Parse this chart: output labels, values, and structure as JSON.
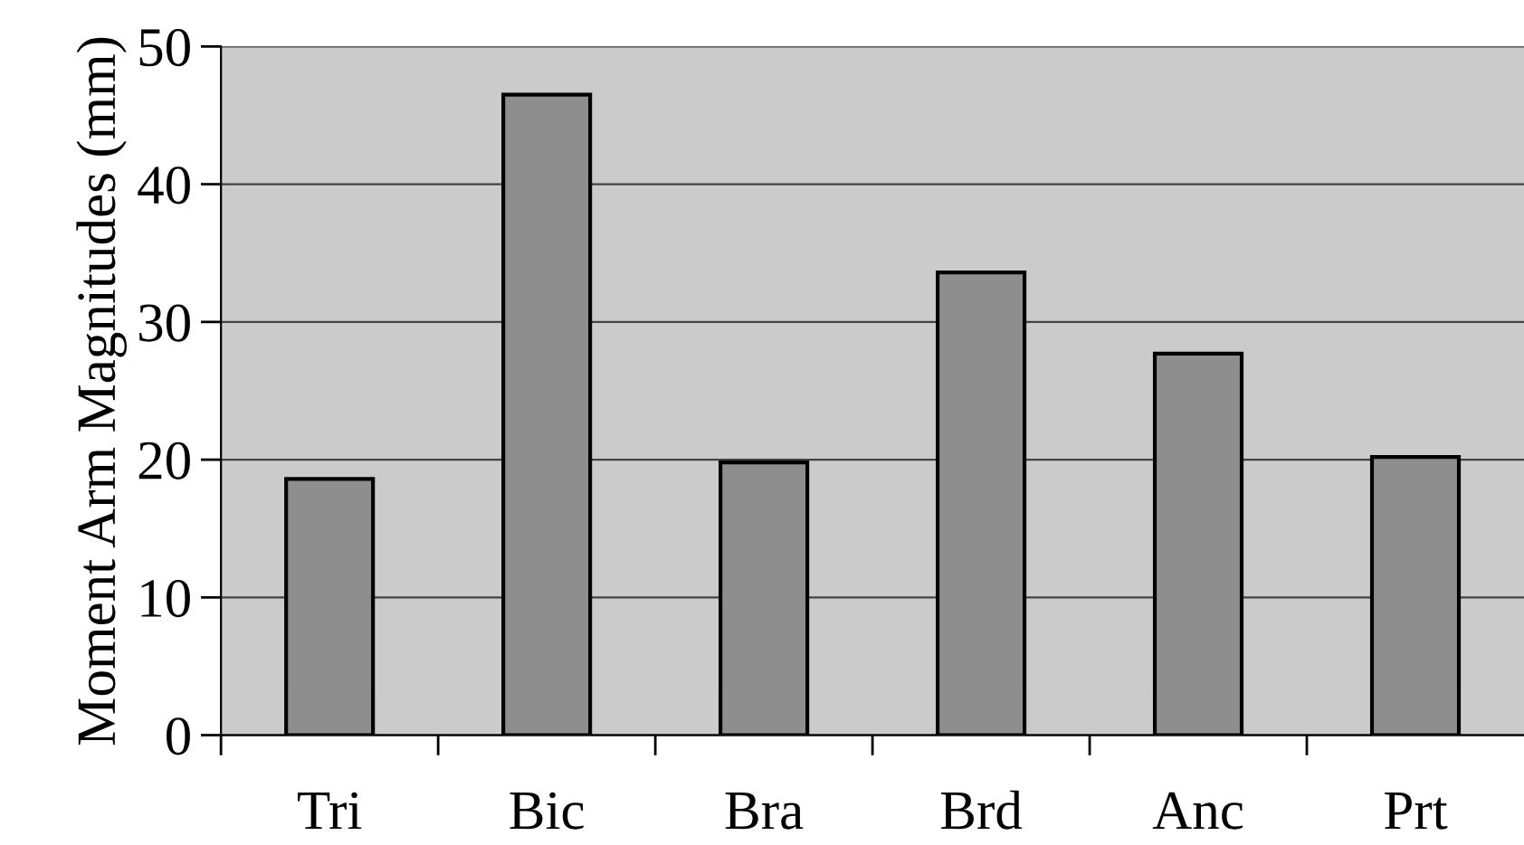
{
  "chart_data": {
    "type": "bar",
    "ylabel": "Moment Arm Magnitudes (mm)",
    "categories": [
      "Tri",
      "Bic",
      "Bra",
      "Brd",
      "Anc",
      "Prt"
    ],
    "values": [
      18.6,
      46.5,
      19.8,
      33.6,
      27.7,
      20.2
    ],
    "color": "#8e8e8e",
    "ylim": [
      0,
      50
    ],
    "yticks": [
      0,
      10,
      20,
      30,
      40,
      50
    ],
    "grid": "y"
  }
}
